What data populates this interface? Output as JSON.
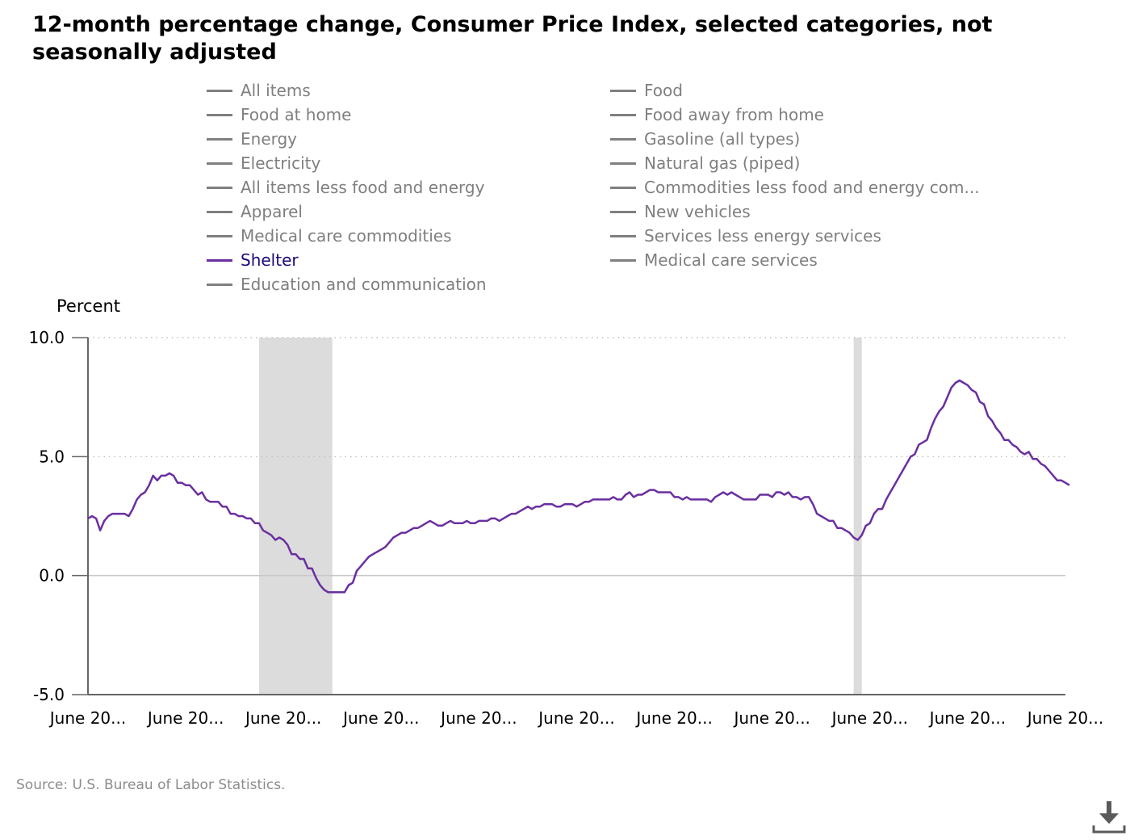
{
  "title": "12-month percentage change, Consumer Price Index, selected categories, not seasonally adjusted",
  "source": "Source: U.S. Bureau of Labor Statistics.",
  "download_icon": "download-icon",
  "colors": {
    "highlight": "#6a2fa0",
    "inactive": "#7f7f7f",
    "recession": "#dcdcdc",
    "active_label": "#1a0a7a"
  },
  "legend": [
    {
      "label": "All items",
      "active": false
    },
    {
      "label": "Food",
      "active": false
    },
    {
      "label": "Food at home",
      "active": false
    },
    {
      "label": "Food away from home",
      "active": false
    },
    {
      "label": "Energy",
      "active": false
    },
    {
      "label": "Gasoline (all types)",
      "active": false
    },
    {
      "label": "Electricity",
      "active": false
    },
    {
      "label": "Natural gas (piped)",
      "active": false
    },
    {
      "label": "All items less food and energy",
      "active": false
    },
    {
      "label": "Commodities less food and energy com...",
      "active": false
    },
    {
      "label": "Apparel",
      "active": false
    },
    {
      "label": "New vehicles",
      "active": false
    },
    {
      "label": "Medical care commodities",
      "active": false
    },
    {
      "label": "Services less energy services",
      "active": false
    },
    {
      "label": "Shelter",
      "active": true
    },
    {
      "label": "Medical care services",
      "active": false
    },
    {
      "label": "Education and communication",
      "active": false
    }
  ],
  "chart_data": {
    "type": "line",
    "ylabel": "Percent",
    "ylim": [
      -5,
      10
    ],
    "yticks": [
      "10.0",
      "5.0",
      "0.0",
      "-5.0"
    ],
    "ytick_values": [
      10,
      5,
      0,
      -5
    ],
    "x_ticks": [
      "June 20...",
      "June 20...",
      "June 20...",
      "June 20...",
      "June 20...",
      "June 20...",
      "June 20...",
      "June 20...",
      "June 20...",
      "June 20...",
      "June 20..."
    ],
    "x_start": "June 2004",
    "x_end": "June 2024",
    "recessions": [
      {
        "start": "Dec 2007",
        "end": "Jun 2009"
      },
      {
        "start": "Feb 2020",
        "end": "Apr 2020"
      }
    ],
    "grid": "dotted",
    "legend_position": "top",
    "series": [
      {
        "name": "Shelter",
        "start": "June 2004",
        "frequency": "monthly",
        "values": [
          2.4,
          2.5,
          2.4,
          1.9,
          2.3,
          2.5,
          2.6,
          2.6,
          2.6,
          2.6,
          2.5,
          2.8,
          3.2,
          3.4,
          3.5,
          3.8,
          4.2,
          4.0,
          4.2,
          4.2,
          4.3,
          4.2,
          3.9,
          3.9,
          3.8,
          3.8,
          3.6,
          3.4,
          3.5,
          3.2,
          3.1,
          3.1,
          3.1,
          2.9,
          2.9,
          2.6,
          2.6,
          2.5,
          2.5,
          2.4,
          2.4,
          2.2,
          2.2,
          1.9,
          1.8,
          1.7,
          1.5,
          1.6,
          1.5,
          1.3,
          0.9,
          0.9,
          0.7,
          0.7,
          0.3,
          0.3,
          -0.1,
          -0.4,
          -0.6,
          -0.7,
          -0.7,
          -0.7,
          -0.7,
          -0.7,
          -0.4,
          -0.3,
          0.2,
          0.4,
          0.6,
          0.8,
          0.9,
          1.0,
          1.1,
          1.2,
          1.4,
          1.6,
          1.7,
          1.8,
          1.8,
          1.9,
          2.0,
          2.0,
          2.1,
          2.2,
          2.3,
          2.2,
          2.1,
          2.1,
          2.2,
          2.3,
          2.2,
          2.2,
          2.2,
          2.3,
          2.2,
          2.2,
          2.3,
          2.3,
          2.3,
          2.4,
          2.4,
          2.3,
          2.4,
          2.5,
          2.6,
          2.6,
          2.7,
          2.8,
          2.9,
          2.8,
          2.9,
          2.9,
          3.0,
          3.0,
          3.0,
          2.9,
          2.9,
          3.0,
          3.0,
          3.0,
          2.9,
          3.0,
          3.1,
          3.1,
          3.2,
          3.2,
          3.2,
          3.2,
          3.2,
          3.3,
          3.2,
          3.2,
          3.4,
          3.5,
          3.3,
          3.4,
          3.4,
          3.5,
          3.6,
          3.6,
          3.5,
          3.5,
          3.5,
          3.5,
          3.3,
          3.3,
          3.2,
          3.3,
          3.2,
          3.2,
          3.2,
          3.2,
          3.2,
          3.1,
          3.3,
          3.4,
          3.5,
          3.4,
          3.5,
          3.4,
          3.3,
          3.2,
          3.2,
          3.2,
          3.2,
          3.4,
          3.4,
          3.4,
          3.3,
          3.5,
          3.5,
          3.4,
          3.5,
          3.3,
          3.3,
          3.2,
          3.3,
          3.3,
          3.0,
          2.6,
          2.5,
          2.4,
          2.3,
          2.3,
          2.0,
          2.0,
          1.9,
          1.8,
          1.6,
          1.5,
          1.7,
          2.1,
          2.2,
          2.6,
          2.8,
          2.8,
          3.2,
          3.5,
          3.8,
          4.1,
          4.4,
          4.7,
          5.0,
          5.1,
          5.5,
          5.6,
          5.7,
          6.2,
          6.6,
          6.9,
          7.1,
          7.5,
          7.9,
          8.1,
          8.2,
          8.1,
          8.0,
          7.8,
          7.7,
          7.3,
          7.2,
          6.7,
          6.5,
          6.2,
          6.0,
          5.7,
          5.7,
          5.5,
          5.4,
          5.2,
          5.1,
          5.2,
          4.9,
          4.9,
          4.7,
          4.6,
          4.4,
          4.2,
          4.0,
          4.0,
          3.9,
          3.8
        ]
      }
    ]
  }
}
